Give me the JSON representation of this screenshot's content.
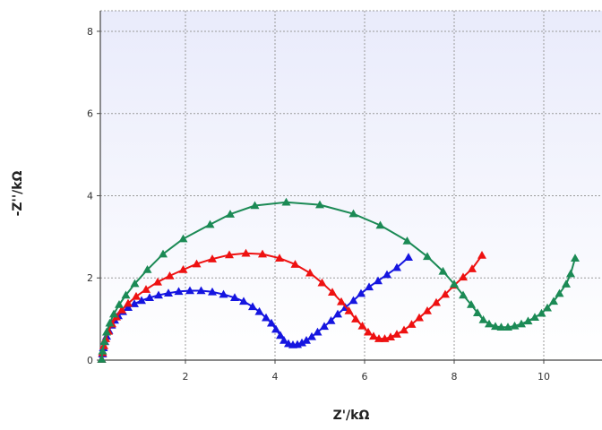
{
  "chart_data": {
    "type": "scatter",
    "title": "",
    "xlabel": "Z'/kΩ",
    "ylabel": "-Z''/kΩ",
    "xlim": [
      0.1,
      11.3
    ],
    "ylim": [
      0,
      8.5
    ],
    "x_ticks": [
      "2",
      "4",
      "6",
      "8",
      "10"
    ],
    "y_ticks": [
      "0",
      "2",
      "4",
      "6",
      "8"
    ],
    "grid": true,
    "marker": "triangle",
    "series": [
      {
        "color": "#1515e0",
        "points": [
          [
            0.13,
            0.02
          ],
          [
            0.15,
            0.15
          ],
          [
            0.17,
            0.3
          ],
          [
            0.2,
            0.45
          ],
          [
            0.24,
            0.58
          ],
          [
            0.29,
            0.72
          ],
          [
            0.35,
            0.85
          ],
          [
            0.42,
            0.97
          ],
          [
            0.5,
            1.08
          ],
          [
            0.6,
            1.18
          ],
          [
            0.72,
            1.28
          ],
          [
            0.86,
            1.37
          ],
          [
            1.02,
            1.45
          ],
          [
            1.2,
            1.52
          ],
          [
            1.4,
            1.58
          ],
          [
            1.62,
            1.63
          ],
          [
            1.85,
            1.67
          ],
          [
            2.1,
            1.69
          ],
          [
            2.35,
            1.69
          ],
          [
            2.6,
            1.66
          ],
          [
            2.85,
            1.6
          ],
          [
            3.1,
            1.52
          ],
          [
            3.3,
            1.43
          ],
          [
            3.5,
            1.3
          ],
          [
            3.65,
            1.18
          ],
          [
            3.8,
            1.03
          ],
          [
            3.92,
            0.9
          ],
          [
            4.02,
            0.75
          ],
          [
            4.12,
            0.6
          ],
          [
            4.2,
            0.48
          ],
          [
            4.3,
            0.4
          ],
          [
            4.4,
            0.37
          ],
          [
            4.5,
            0.38
          ],
          [
            4.6,
            0.42
          ],
          [
            4.7,
            0.48
          ],
          [
            4.82,
            0.57
          ],
          [
            4.95,
            0.68
          ],
          [
            5.1,
            0.82
          ],
          [
            5.25,
            0.96
          ],
          [
            5.4,
            1.12
          ],
          [
            5.57,
            1.28
          ],
          [
            5.75,
            1.45
          ],
          [
            5.92,
            1.62
          ],
          [
            6.1,
            1.78
          ],
          [
            6.3,
            1.93
          ],
          [
            6.5,
            2.08
          ],
          [
            6.72,
            2.25
          ],
          [
            6.98,
            2.5
          ]
        ]
      },
      {
        "color": "#ee1111",
        "points": [
          [
            0.13,
            0.02
          ],
          [
            0.15,
            0.18
          ],
          [
            0.18,
            0.35
          ],
          [
            0.22,
            0.52
          ],
          [
            0.28,
            0.7
          ],
          [
            0.36,
            0.88
          ],
          [
            0.46,
            1.05
          ],
          [
            0.58,
            1.22
          ],
          [
            0.72,
            1.38
          ],
          [
            0.9,
            1.55
          ],
          [
            1.12,
            1.72
          ],
          [
            1.38,
            1.9
          ],
          [
            1.65,
            2.05
          ],
          [
            1.95,
            2.2
          ],
          [
            2.25,
            2.34
          ],
          [
            2.6,
            2.46
          ],
          [
            2.98,
            2.56
          ],
          [
            3.35,
            2.6
          ],
          [
            3.72,
            2.58
          ],
          [
            4.1,
            2.48
          ],
          [
            4.45,
            2.33
          ],
          [
            4.78,
            2.12
          ],
          [
            5.05,
            1.88
          ],
          [
            5.28,
            1.65
          ],
          [
            5.48,
            1.42
          ],
          [
            5.65,
            1.2
          ],
          [
            5.8,
            1.0
          ],
          [
            5.95,
            0.83
          ],
          [
            6.08,
            0.68
          ],
          [
            6.2,
            0.58
          ],
          [
            6.32,
            0.52
          ],
          [
            6.45,
            0.52
          ],
          [
            6.58,
            0.56
          ],
          [
            6.72,
            0.63
          ],
          [
            6.88,
            0.73
          ],
          [
            7.05,
            0.87
          ],
          [
            7.22,
            1.03
          ],
          [
            7.4,
            1.2
          ],
          [
            7.6,
            1.4
          ],
          [
            7.8,
            1.6
          ],
          [
            8.0,
            1.82
          ],
          [
            8.2,
            2.02
          ],
          [
            8.4,
            2.22
          ],
          [
            8.62,
            2.55
          ]
        ]
      },
      {
        "color": "#1b8a55",
        "points": [
          [
            0.13,
            0.02
          ],
          [
            0.15,
            0.22
          ],
          [
            0.19,
            0.45
          ],
          [
            0.24,
            0.68
          ],
          [
            0.31,
            0.9
          ],
          [
            0.4,
            1.12
          ],
          [
            0.52,
            1.35
          ],
          [
            0.67,
            1.58
          ],
          [
            0.87,
            1.86
          ],
          [
            1.15,
            2.2
          ],
          [
            1.5,
            2.58
          ],
          [
            1.95,
            2.95
          ],
          [
            2.55,
            3.3
          ],
          [
            3.0,
            3.55
          ],
          [
            3.55,
            3.76
          ],
          [
            4.25,
            3.84
          ],
          [
            5.0,
            3.78
          ],
          [
            5.75,
            3.56
          ],
          [
            6.35,
            3.28
          ],
          [
            6.95,
            2.9
          ],
          [
            7.4,
            2.52
          ],
          [
            7.75,
            2.16
          ],
          [
            8.0,
            1.85
          ],
          [
            8.2,
            1.58
          ],
          [
            8.38,
            1.35
          ],
          [
            8.52,
            1.15
          ],
          [
            8.65,
            0.98
          ],
          [
            8.78,
            0.88
          ],
          [
            8.92,
            0.82
          ],
          [
            9.05,
            0.8
          ],
          [
            9.2,
            0.8
          ],
          [
            9.35,
            0.83
          ],
          [
            9.5,
            0.88
          ],
          [
            9.65,
            0.95
          ],
          [
            9.8,
            1.04
          ],
          [
            9.95,
            1.14
          ],
          [
            10.08,
            1.27
          ],
          [
            10.22,
            1.43
          ],
          [
            10.35,
            1.62
          ],
          [
            10.5,
            1.85
          ],
          [
            10.6,
            2.1
          ],
          [
            10.7,
            2.48
          ]
        ]
      }
    ]
  }
}
